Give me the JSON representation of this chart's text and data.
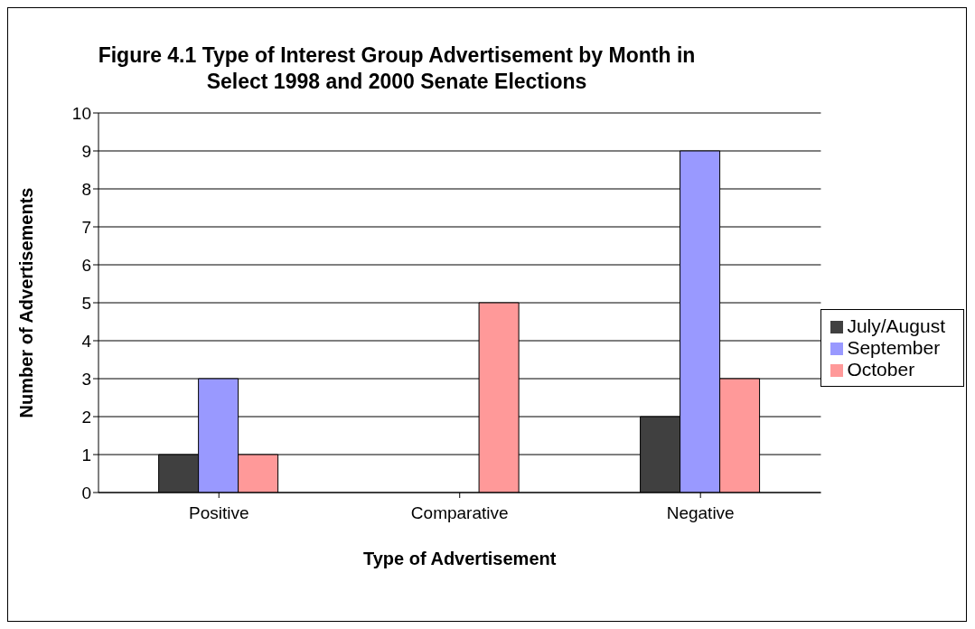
{
  "chart_data": {
    "type": "bar",
    "title": "Figure 4.1 Type of Interest Group Advertisement by Month in Select 1998 and 2000 Senate Elections",
    "xlabel": "Type of Advertisement",
    "ylabel": "Number of Advertisements",
    "categories": [
      "Positive",
      "Comparative",
      "Negative"
    ],
    "series": [
      {
        "name": "July/August",
        "color": "#404040",
        "values": [
          1,
          0,
          2
        ]
      },
      {
        "name": "September",
        "color": "#9999ff",
        "values": [
          3,
          0,
          9
        ]
      },
      {
        "name": "October",
        "color": "#ff9999",
        "values": [
          1,
          5,
          3
        ]
      }
    ],
    "ylim": [
      0,
      10
    ],
    "yticks": [
      0,
      1,
      2,
      3,
      4,
      5,
      6,
      7,
      8,
      9,
      10
    ],
    "grid": "y",
    "legend": "right"
  }
}
